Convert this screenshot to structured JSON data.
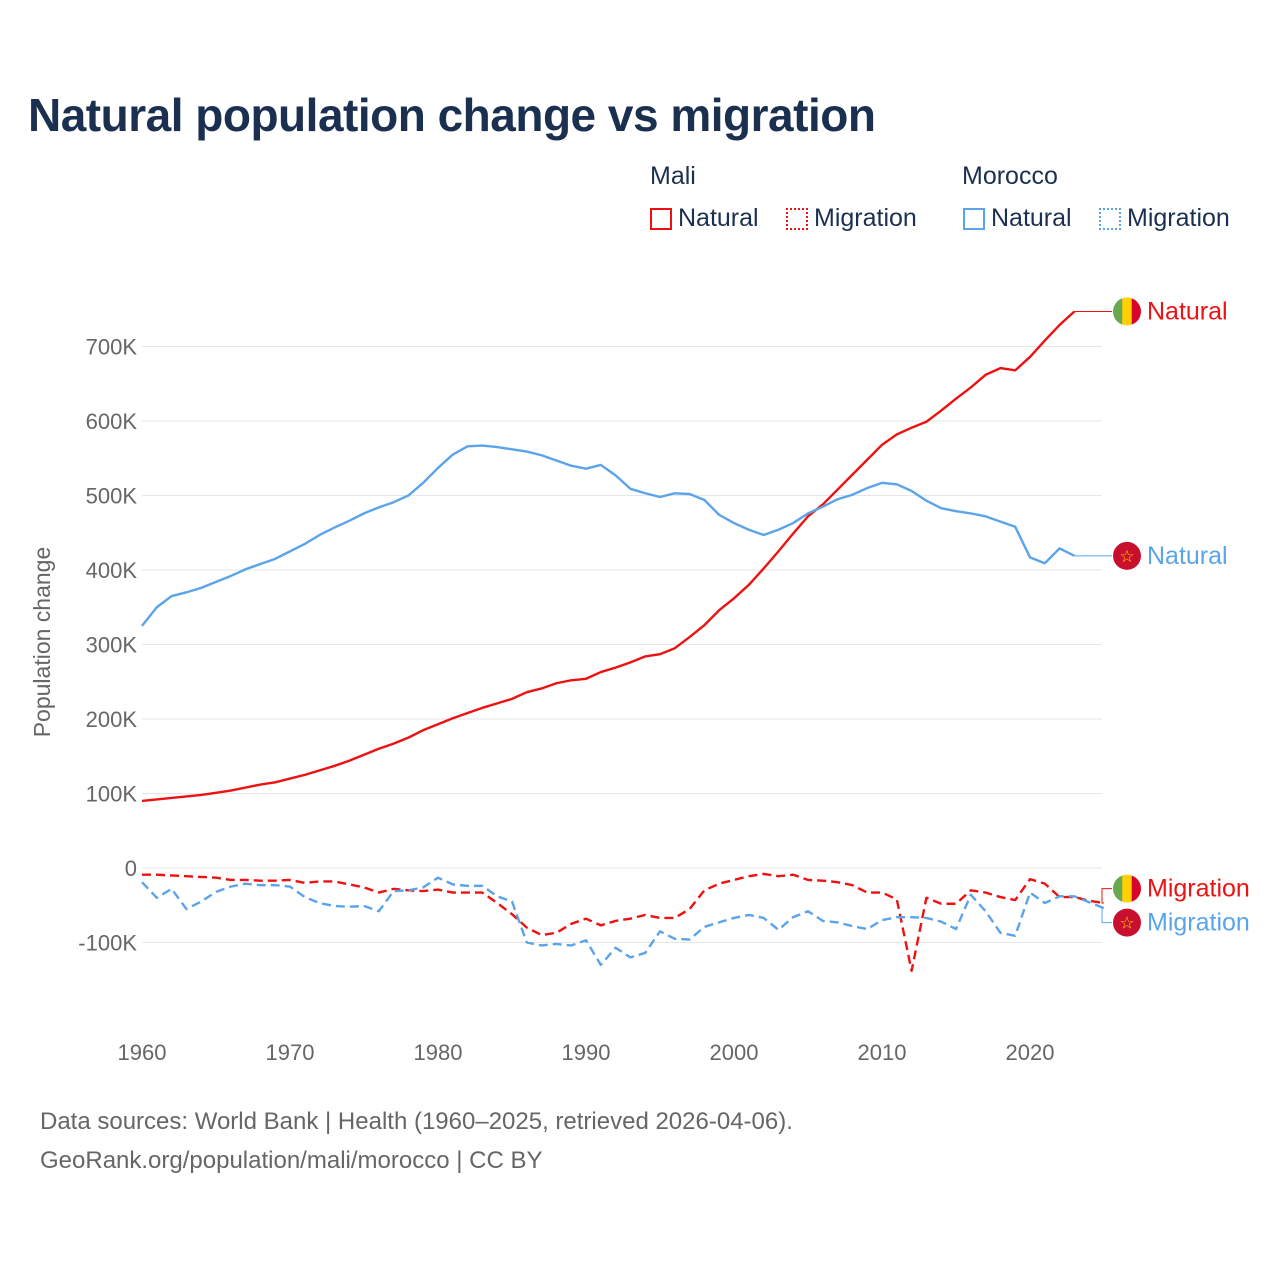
{
  "chart_data": {
    "type": "line",
    "title": "Natural population change vs migration",
    "ylabel": "Population change",
    "xlabel": "",
    "xlim": [
      1960,
      2025
    ],
    "ylim": [
      -200000,
      750000
    ],
    "x_ticks": [
      "1960",
      "1970",
      "1980",
      "1990",
      "2000",
      "2010",
      "2020"
    ],
    "y_ticks": [
      {
        "value": 700000,
        "label": "700K"
      },
      {
        "value": 600000,
        "label": "600K"
      },
      {
        "value": 500000,
        "label": "500K"
      },
      {
        "value": 400000,
        "label": "400K"
      },
      {
        "value": 300000,
        "label": "300K"
      },
      {
        "value": 200000,
        "label": "200K"
      },
      {
        "value": 100000,
        "label": "100K"
      },
      {
        "value": 0,
        "label": "0"
      },
      {
        "value": -100000,
        "label": "-100K"
      }
    ],
    "grid": true,
    "legend_placement": "top-right",
    "legend": {
      "groups": [
        {
          "name": "Mali",
          "items": [
            "Natural",
            "Migration"
          ],
          "color": "#ee1111"
        },
        {
          "name": "Morocco",
          "items": [
            "Natural",
            "Migration"
          ],
          "color": "#5ba4ea"
        }
      ]
    },
    "series": [
      {
        "country": "Mali",
        "name": "Natural",
        "color": "#ee1111",
        "style": "solid",
        "start_year": 1960,
        "values_k": [
          90,
          92,
          94,
          96,
          98,
          101,
          104,
          108,
          112,
          115,
          120,
          125,
          131,
          137,
          144,
          152,
          160,
          167,
          175,
          185,
          193,
          201,
          208,
          215,
          221,
          227,
          236,
          241,
          248,
          252,
          254,
          263,
          269,
          276,
          284,
          287,
          295,
          310,
          326,
          346,
          362,
          380,
          402,
          425,
          449,
          472,
          488,
          508,
          528,
          548,
          568,
          582,
          591,
          599,
          614,
          630,
          645,
          662,
          671,
          668,
          686,
          708,
          729,
          747
        ],
        "end_label": "Natural"
      },
      {
        "country": "Morocco",
        "name": "Natural",
        "color": "#5ba4ea",
        "style": "solid",
        "start_year": 1960,
        "values_k": [
          325,
          350,
          365,
          370,
          376,
          384,
          392,
          401,
          408,
          415,
          425,
          435,
          447,
          457,
          466,
          476,
          484,
          491,
          500,
          517,
          537,
          555,
          566,
          567,
          565,
          562,
          559,
          554,
          547,
          540,
          536,
          541,
          527,
          509,
          503,
          498,
          503,
          502,
          494,
          474,
          463,
          454,
          447,
          454,
          463,
          476,
          485,
          495,
          501,
          510,
          517,
          515,
          506,
          493,
          483,
          479,
          476,
          472,
          465,
          458,
          417,
          409,
          429,
          419
        ],
        "end_label": "Natural"
      },
      {
        "country": "Mali",
        "name": "Migration",
        "color": "#ee1111",
        "style": "dashed",
        "start_year": 1960,
        "values_k": [
          -9,
          -9,
          -10,
          -11,
          -12,
          -13,
          -16,
          -16,
          -17,
          -17,
          -16,
          -20,
          -18,
          -18,
          -22,
          -26,
          -33,
          -28,
          -30,
          -31,
          -29,
          -33,
          -33,
          -33,
          -47,
          -62,
          -80,
          -90,
          -87,
          -75,
          -68,
          -77,
          -71,
          -68,
          -63,
          -67,
          -67,
          -55,
          -30,
          -21,
          -16,
          -11,
          -8,
          -11,
          -9,
          -16,
          -17,
          -19,
          -23,
          -33,
          -33,
          -42,
          -138,
          -40,
          -48,
          -48,
          -30,
          -33,
          -39,
          -43,
          -15,
          -21,
          -39,
          -39,
          -44,
          -47
        ],
        "end_label": "Migration"
      },
      {
        "country": "Morocco",
        "name": "Migration",
        "color": "#5ba4ea",
        "style": "dashed",
        "start_year": 1960,
        "values_k": [
          -19,
          -40,
          -28,
          -55,
          -45,
          -32,
          -25,
          -21,
          -23,
          -23,
          -25,
          -39,
          -47,
          -51,
          -52,
          -51,
          -58,
          -31,
          -30,
          -26,
          -13,
          -22,
          -24,
          -24,
          -38,
          -45,
          -100,
          -104,
          -102,
          -104,
          -97,
          -130,
          -107,
          -120,
          -114,
          -85,
          -95,
          -96,
          -79,
          -73,
          -67,
          -63,
          -67,
          -83,
          -66,
          -58,
          -71,
          -73,
          -78,
          -82,
          -70,
          -66,
          -66,
          -67,
          -72,
          -82,
          -36,
          -58,
          -87,
          -91,
          -33,
          -47,
          -38,
          -38,
          -46,
          -54
        ],
        "end_label": "Migration"
      }
    ]
  },
  "footer": {
    "line1": "Data sources: World Bank | Health (1960–2025, retrieved 2026-04-06).",
    "line2": "GeoRank.org/population/mali/morocco | CC BY"
  }
}
